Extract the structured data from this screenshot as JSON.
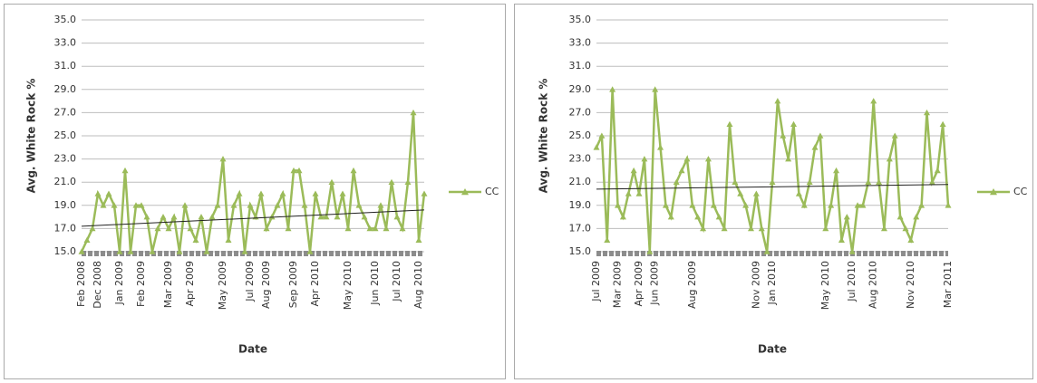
{
  "chart_data": [
    {
      "type": "line",
      "y_label": "Avg. White Rock %",
      "x_label": "Date",
      "categories": [
        "Feb 2008",
        null,
        null,
        "Dec 2008",
        null,
        null,
        null,
        "Jan 2009",
        null,
        null,
        null,
        "Feb 2009",
        null,
        null,
        null,
        null,
        "Mar 2009",
        null,
        null,
        null,
        "Apr 2009",
        null,
        null,
        null,
        null,
        null,
        "May 2009",
        null,
        null,
        null,
        null,
        "Jul 2009",
        null,
        null,
        "Aug 2009",
        null,
        null,
        null,
        null,
        "Sep 2009",
        null,
        null,
        null,
        "Apr 2010",
        null,
        null,
        null,
        null,
        null,
        "May 2010",
        null,
        null,
        null,
        null,
        "Jun 2010",
        null,
        null,
        null,
        "Jul 2010",
        null,
        null,
        null,
        "Aug 2010",
        null
      ],
      "series": [
        {
          "name": "CC",
          "color": "#9bbb59",
          "values": [
            15,
            16,
            17,
            20,
            19,
            20,
            19,
            15,
            22,
            15,
            19,
            19,
            18,
            15,
            17,
            18,
            17,
            18,
            15,
            19,
            17,
            16,
            18,
            15,
            18,
            19,
            23,
            16,
            19,
            20,
            15,
            19,
            18,
            20,
            17,
            18,
            19,
            20,
            17,
            22,
            22,
            19,
            15,
            20,
            18,
            18,
            21,
            18,
            20,
            17,
            22,
            19,
            18,
            17,
            17,
            19,
            17,
            21,
            18,
            17,
            21,
            27,
            16,
            20
          ]
        }
      ],
      "trendline": [
        17.2,
        18.6
      ],
      "ylim": [
        15,
        35
      ],
      "yticks": [
        {
          "value": 15,
          "label": "15.0"
        },
        {
          "value": 17,
          "label": "17.0"
        },
        {
          "value": 19,
          "label": "19.0"
        },
        {
          "value": 21,
          "label": "21.0"
        },
        {
          "value": 23,
          "label": "23.0"
        },
        {
          "value": 25,
          "label": "25.0"
        },
        {
          "value": 27,
          "label": "27.0"
        },
        {
          "value": 29,
          "label": "29.0"
        },
        {
          "value": 31,
          "label": "31.0"
        },
        {
          "value": 33,
          "label": "33.0"
        },
        {
          "value": 35,
          "label": "35.0"
        }
      ],
      "grid": true
    },
    {
      "type": "line",
      "y_label": "Avg. White Rock %",
      "x_label": "Date",
      "categories": [
        "Jul 2009",
        null,
        null,
        null,
        "Mar 2009",
        null,
        null,
        null,
        "Apr 2009",
        null,
        null,
        "Jun 2009",
        null,
        null,
        null,
        null,
        null,
        null,
        "Aug 2009",
        null,
        null,
        null,
        null,
        null,
        null,
        null,
        null,
        null,
        null,
        null,
        "Nov 2009",
        null,
        null,
        "Jan 2010",
        null,
        null,
        null,
        null,
        null,
        null,
        null,
        null,
        null,
        "May 2010",
        null,
        null,
        null,
        null,
        "Jul 2010",
        null,
        null,
        null,
        "Aug 2010",
        null,
        null,
        null,
        null,
        null,
        null,
        "Nov 2010",
        null,
        null,
        null,
        null,
        null,
        null,
        "Mar 2011"
      ],
      "series": [
        {
          "name": "CC",
          "color": "#9bbb59",
          "values": [
            24,
            25,
            16,
            29,
            19,
            18,
            20,
            22,
            20,
            23,
            15,
            29,
            24,
            19,
            18,
            21,
            22,
            23,
            19,
            18,
            17,
            23,
            19,
            18,
            17,
            26,
            21,
            20,
            19,
            17,
            20,
            17,
            15,
            21,
            28,
            25,
            23,
            26,
            20,
            19,
            21,
            24,
            25,
            17,
            19,
            22,
            16,
            18,
            15,
            19,
            19,
            21,
            28,
            21,
            17,
            23,
            25,
            18,
            17,
            16,
            18,
            19,
            27,
            21,
            22,
            26,
            19
          ]
        }
      ],
      "trendline": [
        20.4,
        20.8
      ],
      "ylim": [
        15,
        35
      ],
      "yticks": [
        {
          "value": 15,
          "label": "15.0"
        },
        {
          "value": 17,
          "label": "17.0"
        },
        {
          "value": 19,
          "label": "19.0"
        },
        {
          "value": 21,
          "label": "21.0"
        },
        {
          "value": 23,
          "label": "23.0"
        },
        {
          "value": 25,
          "label": "25.0"
        },
        {
          "value": 27,
          "label": "27.0"
        },
        {
          "value": 29,
          "label": "29.0"
        },
        {
          "value": 31,
          "label": "31.0"
        },
        {
          "value": 33,
          "label": "33.0"
        },
        {
          "value": 35,
          "label": "35.0"
        }
      ],
      "grid": true
    }
  ]
}
